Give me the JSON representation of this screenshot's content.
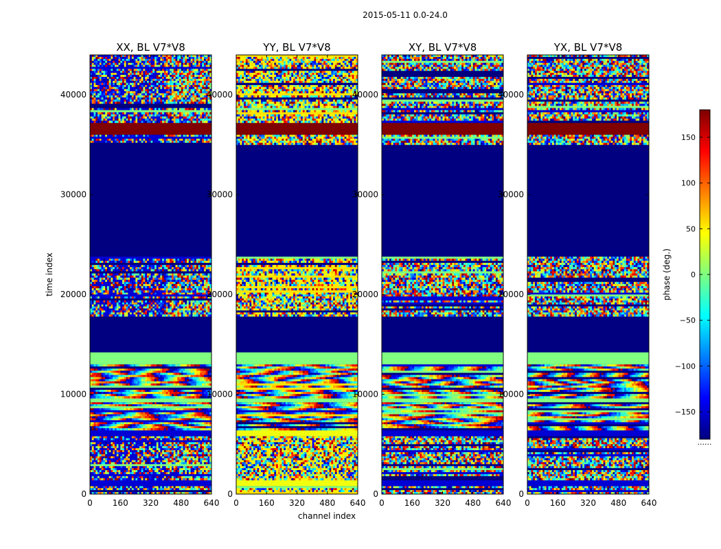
{
  "figure": {
    "suptitle": "2015-05-11 0.0-24.0"
  },
  "colorbar": {
    "label": "phase (deg.)",
    "range": [
      -180,
      180
    ],
    "ticks": [
      150,
      100,
      50,
      0,
      -50,
      -100,
      -150
    ],
    "tick_labels": [
      "150",
      "100",
      "50",
      "0",
      "−50",
      "−100",
      "−150"
    ],
    "bottom_note": "......",
    "colors": [
      "#00007f",
      "#0000ff",
      "#007fff",
      "#00ffff",
      "#7fff7f",
      "#ffff00",
      "#ff7f00",
      "#ff0000",
      "#7f0000"
    ]
  },
  "chart_data": {
    "type": "heatmap",
    "colormap": "jet",
    "xlabel": "channel index",
    "ylabel": "time index",
    "xlim": [
      0,
      640
    ],
    "ylim": [
      0,
      44000
    ],
    "xticks": [
      0,
      160,
      320,
      480,
      640
    ],
    "yticks": [
      0,
      10000,
      20000,
      30000,
      40000
    ],
    "panels": [
      {
        "title": "XX, BL V7*V8",
        "pol": "XX"
      },
      {
        "title": "YY, BL V7*V8",
        "pol": "YY"
      },
      {
        "title": "XY, BL V7*V8",
        "pol": "XY"
      },
      {
        "title": "YX, BL V7*V8",
        "pol": "YX"
      }
    ],
    "bands": [
      {
        "t0": 0,
        "t1": 800,
        "style": "noise"
      },
      {
        "t0": 800,
        "t1": 1400,
        "style": "solid",
        "phase": -150
      },
      {
        "t0": 1400,
        "t1": 3800,
        "style": "noise"
      },
      {
        "t0": 3800,
        "t1": 5800,
        "style": "noise"
      },
      {
        "t0": 5800,
        "t1": 6400,
        "style": "solid",
        "phase": -150
      },
      {
        "t0": 6400,
        "t1": 9200,
        "style": "fringe"
      },
      {
        "t0": 9200,
        "t1": 9600,
        "style": "solid",
        "phase": 0
      },
      {
        "t0": 9600,
        "t1": 13000,
        "style": "fringe"
      },
      {
        "t0": 13000,
        "t1": 14200,
        "style": "solid",
        "phase": 0
      },
      {
        "t0": 14200,
        "t1": 17800,
        "style": "solid",
        "phase": -180
      },
      {
        "t0": 17800,
        "t1": 20200,
        "style": "noise"
      },
      {
        "t0": 20200,
        "t1": 23800,
        "style": "noise"
      },
      {
        "t0": 23800,
        "t1": 35000,
        "style": "solid",
        "phase": -180
      },
      {
        "t0": 35000,
        "t1": 36000,
        "style": "noise"
      },
      {
        "t0": 36000,
        "t1": 37200,
        "style": "solid",
        "phase": 180
      },
      {
        "t0": 37200,
        "t1": 41000,
        "style": "noise"
      },
      {
        "t0": 41000,
        "t1": 44000,
        "style": "noise"
      }
    ]
  }
}
